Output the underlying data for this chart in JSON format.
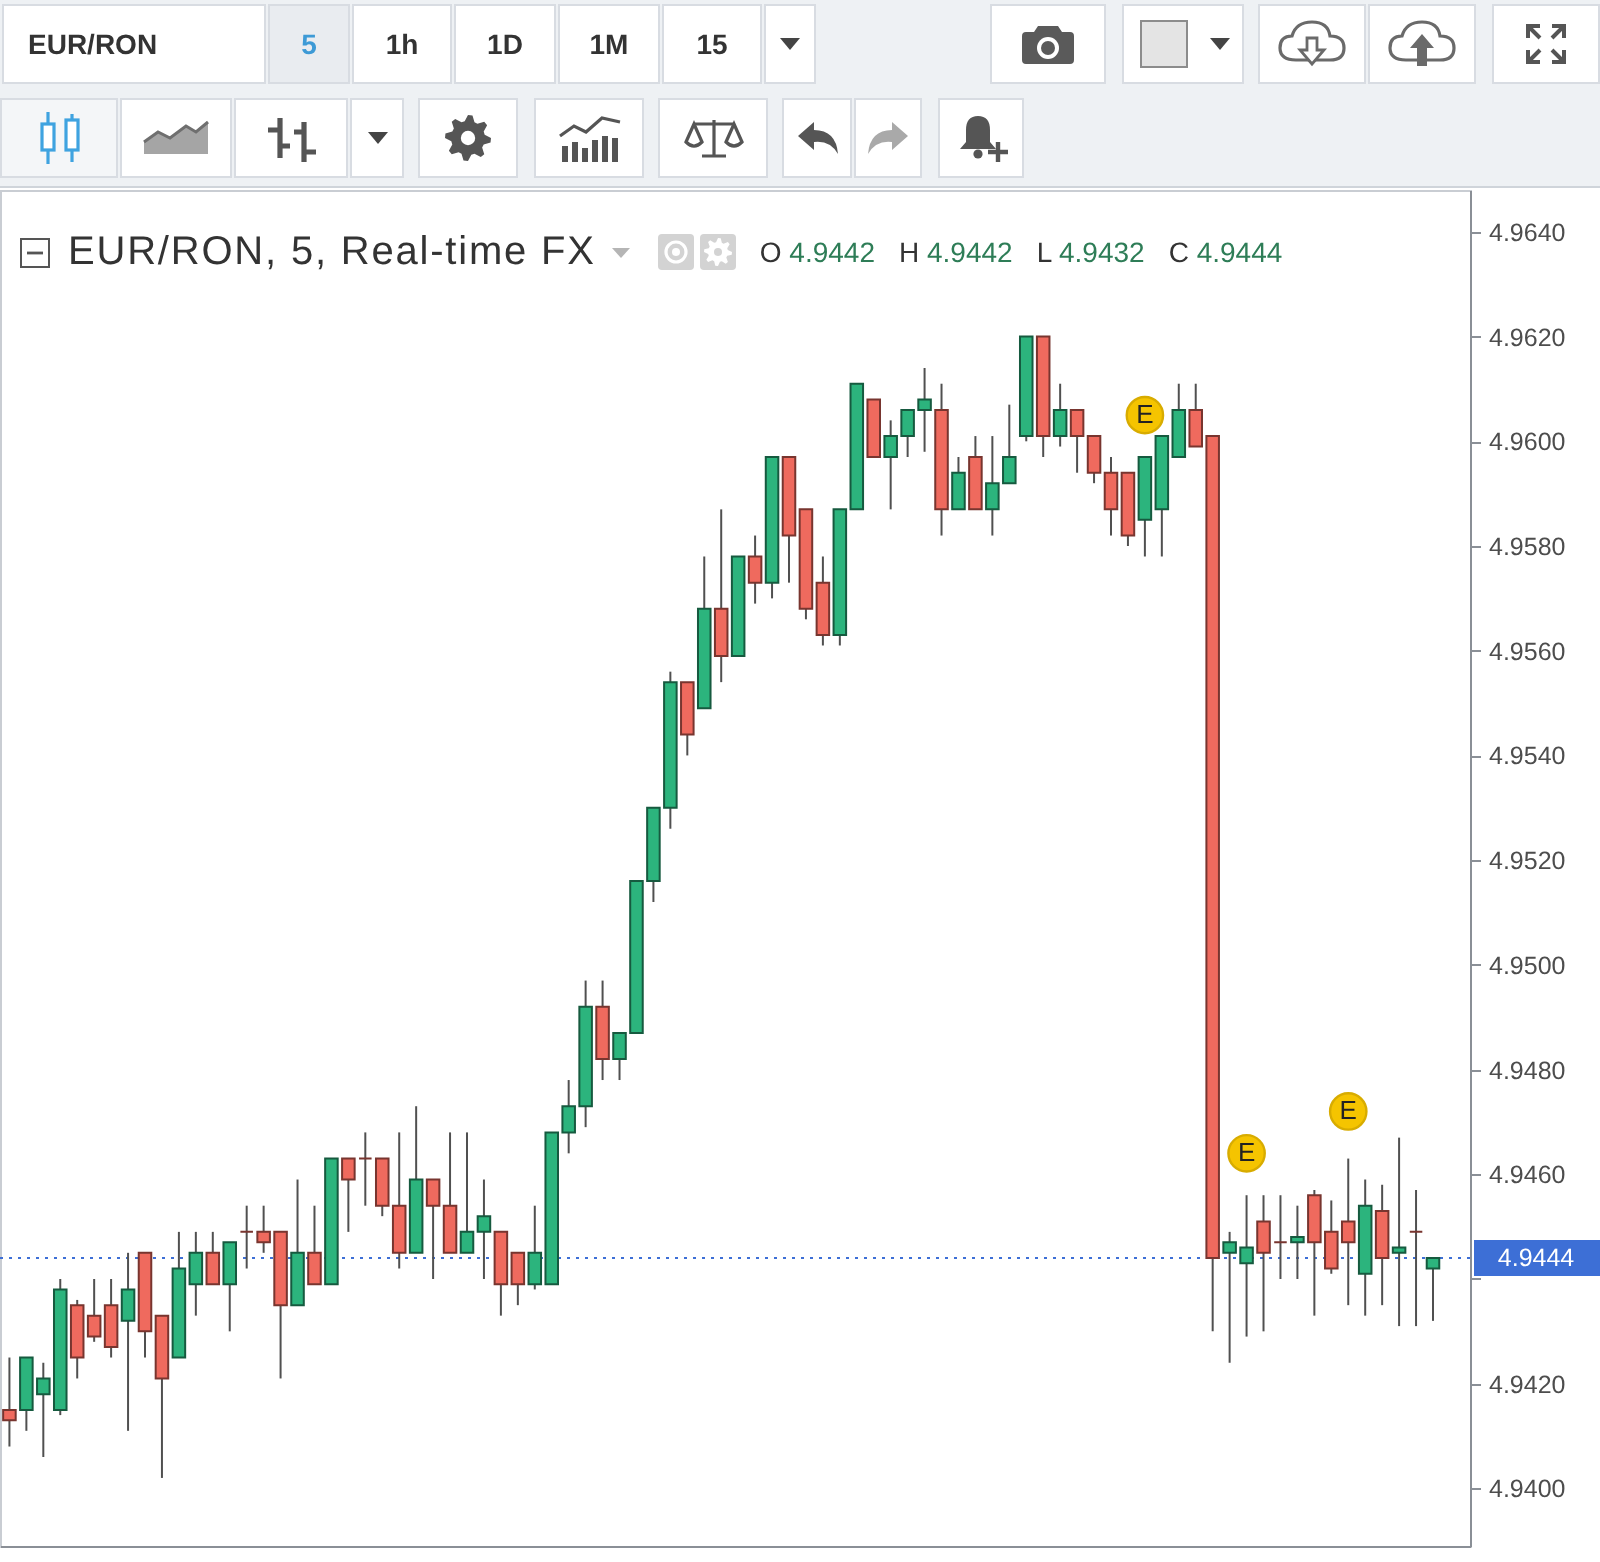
{
  "chart_data": {
    "type": "candlestick",
    "title": "EUR/RON, 5, Real-time FX",
    "annotations": [
      "EUR/RON",
      "5",
      "1h",
      "1D",
      "1M",
      "15",
      "O 4.9442",
      "H 4.9442",
      "L 4.9432",
      "C 4.9444"
    ],
    "categories": [
      null,
      null,
      null,
      null,
      null,
      null,
      null,
      null,
      null,
      null,
      null,
      null,
      null,
      null,
      null,
      null,
      null,
      null,
      null,
      null,
      null,
      null,
      null,
      null,
      null,
      null,
      null,
      null,
      null,
      null,
      null,
      null,
      null,
      null,
      null,
      null,
      null,
      null,
      null,
      null,
      null,
      null,
      null,
      null,
      null,
      null,
      null,
      null,
      null,
      null,
      null,
      null,
      null,
      null,
      null,
      null,
      null,
      null,
      null,
      null,
      null,
      null,
      null,
      null,
      null,
      null,
      null,
      null,
      null,
      null,
      null,
      null,
      null,
      null,
      null,
      null,
      null,
      null,
      null,
      null,
      null,
      null,
      null,
      null,
      null
    ],
    "ohlc": [
      [
        4.9415,
        4.9425,
        4.9408,
        4.9413
      ],
      [
        4.9415,
        4.9425,
        4.9411,
        4.9425
      ],
      [
        4.9418,
        4.9424,
        4.9406,
        4.9421
      ],
      [
        4.9415,
        4.944,
        4.9414,
        4.9438
      ],
      [
        4.9435,
        4.9436,
        4.9421,
        4.9425
      ],
      [
        4.9433,
        4.944,
        4.9428,
        4.9429
      ],
      [
        4.9435,
        4.944,
        4.9425,
        4.9427
      ],
      [
        4.9432,
        4.9445,
        4.9411,
        4.9438
      ],
      [
        4.9445,
        4.9445,
        4.9425,
        4.943
      ],
      [
        4.9433,
        4.9433,
        4.9402,
        4.9421
      ],
      [
        4.9425,
        4.9449,
        4.9425,
        4.9442
      ],
      [
        4.9439,
        4.9449,
        4.9433,
        4.9445
      ],
      [
        4.9445,
        4.9449,
        4.9439,
        4.9439
      ],
      [
        4.9439,
        4.9447,
        4.943,
        4.9447
      ],
      [
        4.9449,
        4.9454,
        4.9442,
        4.9449
      ],
      [
        4.9449,
        4.9454,
        4.9445,
        4.9447
      ],
      [
        4.9449,
        4.9449,
        4.9421,
        4.9435
      ],
      [
        4.9435,
        4.9459,
        4.9435,
        4.9445
      ],
      [
        4.9445,
        4.9454,
        4.9439,
        4.9439
      ],
      [
        4.9439,
        4.9463,
        4.9439,
        4.9463
      ],
      [
        4.9463,
        4.9463,
        4.9449,
        4.9459
      ],
      [
        4.9463,
        4.9468,
        4.9454,
        4.9463
      ],
      [
        4.9463,
        4.9463,
        4.9452,
        4.9454
      ],
      [
        4.9454,
        4.9468,
        4.9442,
        4.9445
      ],
      [
        4.9445,
        4.9473,
        4.9445,
        4.9459
      ],
      [
        4.9459,
        4.9459,
        4.944,
        4.9454
      ],
      [
        4.9454,
        4.9468,
        4.9445,
        4.9445
      ],
      [
        4.9445,
        4.9468,
        4.9445,
        4.9449
      ],
      [
        4.9449,
        4.9459,
        4.944,
        4.9452
      ],
      [
        4.9449,
        4.9449,
        4.9433,
        4.9439
      ],
      [
        4.9445,
        4.9445,
        4.9435,
        4.9439
      ],
      [
        4.9439,
        4.9454,
        4.9438,
        4.9445
      ],
      [
        4.9439,
        4.9468,
        4.9439,
        4.9468
      ],
      [
        4.9468,
        4.9478,
        4.9464,
        4.9473
      ],
      [
        4.9473,
        4.9497,
        4.9469,
        4.9492
      ],
      [
        4.9492,
        4.9497,
        4.9478,
        4.9482
      ],
      [
        4.9482,
        4.9487,
        4.9478,
        4.9487
      ],
      [
        4.9487,
        4.9516,
        4.9487,
        4.9516
      ],
      [
        4.9516,
        4.953,
        4.9512,
        4.953
      ],
      [
        4.953,
        4.9556,
        4.9526,
        4.9554
      ],
      [
        4.9554,
        4.9554,
        4.954,
        4.9544
      ],
      [
        4.9549,
        4.9578,
        4.9549,
        4.9568
      ],
      [
        4.9568,
        4.9587,
        4.9554,
        4.9559
      ],
      [
        4.9559,
        4.9578,
        4.9559,
        4.9578
      ],
      [
        4.9578,
        4.9582,
        4.9569,
        4.9573
      ],
      [
        4.9573,
        4.9597,
        4.957,
        4.9597
      ],
      [
        4.9597,
        4.9597,
        4.9573,
        4.9582
      ],
      [
        4.9587,
        4.9587,
        4.9566,
        4.9568
      ],
      [
        4.9573,
        4.9578,
        4.9561,
        4.9563
      ],
      [
        4.9563,
        4.9587,
        4.9561,
        4.9587
      ],
      [
        4.9587,
        4.9611,
        4.9587,
        4.9611
      ],
      [
        4.9608,
        4.9608,
        4.9597,
        4.9597
      ],
      [
        4.9597,
        4.9604,
        4.9587,
        4.9601
      ],
      [
        4.9601,
        4.9606,
        4.9597,
        4.9606
      ],
      [
        4.9606,
        4.9614,
        4.9598,
        4.9608
      ],
      [
        4.9606,
        4.9611,
        4.9582,
        4.9587
      ],
      [
        4.9587,
        4.9597,
        4.9587,
        4.9594
      ],
      [
        4.9597,
        4.9601,
        4.9587,
        4.9587
      ],
      [
        4.9587,
        4.9601,
        4.9582,
        4.9592
      ],
      [
        4.9592,
        4.9607,
        4.9592,
        4.9597
      ],
      [
        4.9601,
        4.962,
        4.96,
        4.962
      ],
      [
        4.962,
        4.962,
        4.9597,
        4.9601
      ],
      [
        4.9601,
        4.9611,
        4.9599,
        4.9606
      ],
      [
        4.9606,
        4.9606,
        4.9594,
        4.9601
      ],
      [
        4.9601,
        4.9601,
        4.9592,
        4.9594
      ],
      [
        4.9594,
        4.9597,
        4.9582,
        4.9587
      ],
      [
        4.9594,
        4.9594,
        4.958,
        4.9582
      ],
      [
        4.9585,
        4.9597,
        4.9578,
        4.9597
      ],
      [
        4.9587,
        4.9601,
        4.9578,
        4.9601
      ],
      [
        4.9597,
        4.9611,
        4.9597,
        4.9606
      ],
      [
        4.9606,
        4.9611,
        4.9599,
        4.9599
      ],
      [
        4.9601,
        4.9601,
        4.943,
        4.9444
      ],
      [
        4.9445,
        4.9449,
        4.9424,
        4.9447
      ],
      [
        4.9443,
        4.9456,
        4.9429,
        4.9446
      ],
      [
        4.9451,
        4.9456,
        4.943,
        4.9445
      ],
      [
        4.9447,
        4.9456,
        4.944,
        4.9447
      ],
      [
        4.9447,
        4.9454,
        4.944,
        4.9448
      ],
      [
        4.9456,
        4.9457,
        4.9433,
        4.9447
      ],
      [
        4.9449,
        4.9455,
        4.9441,
        4.9442
      ],
      [
        4.9451,
        4.9463,
        4.9435,
        4.9447
      ],
      [
        4.9441,
        4.9459,
        4.9433,
        4.9454
      ],
      [
        4.9453,
        4.9458,
        4.9435,
        4.9444
      ],
      [
        4.9445,
        4.9467,
        4.9431,
        4.9446
      ],
      [
        4.9449,
        4.9457,
        4.9431,
        4.9449
      ],
      [
        4.9442,
        4.9444,
        4.9432,
        4.9444
      ]
    ],
    "colors": [
      "#ef6a5e",
      "#2cb47d",
      "#2cb47d",
      "#2cb47d",
      "#ef6a5e",
      "#ef6a5e",
      "#ef6a5e",
      "#2cb47d",
      "#ef6a5e",
      "#ef6a5e",
      "#2cb47d",
      "#2cb47d",
      "#ef6a5e",
      "#2cb47d",
      "#78352f",
      "#ef6a5e",
      "#ef6a5e",
      "#2cb47d",
      "#ef6a5e",
      "#2cb47d",
      "#ef6a5e",
      "#78352f",
      "#ef6a5e",
      "#ef6a5e",
      "#2cb47d",
      "#ef6a5e",
      "#ef6a5e",
      "#2cb47d",
      "#2cb47d",
      "#ef6a5e",
      "#ef6a5e",
      "#2cb47d",
      "#2cb47d",
      "#2cb47d",
      "#2cb47d",
      "#ef6a5e",
      "#2cb47d",
      "#2cb47d",
      "#2cb47d",
      "#2cb47d",
      "#ef6a5e",
      "#2cb47d",
      "#ef6a5e",
      "#2cb47d",
      "#ef6a5e",
      "#2cb47d",
      "#ef6a5e",
      "#ef6a5e",
      "#ef6a5e",
      "#2cb47d",
      "#2cb47d",
      "#ef6a5e",
      "#2cb47d",
      "#2cb47d",
      "#2cb47d",
      "#ef6a5e",
      "#2cb47d",
      "#ef6a5e",
      "#2cb47d",
      "#2cb47d",
      "#2cb47d",
      "#ef6a5e",
      "#2cb47d",
      "#ef6a5e",
      "#ef6a5e",
      "#ef6a5e",
      "#ef6a5e",
      "#2cb47d",
      "#2cb47d",
      "#2cb47d",
      "#ef6a5e",
      "#ef6a5e",
      "#2cb47d",
      "#2cb47d",
      "#ef6a5e",
      "#78352f",
      "#2cb47d",
      "#ef6a5e",
      "#ef6a5e",
      "#ef6a5e",
      "#2cb47d",
      "#ef6a5e",
      "#2cb47d",
      "#78352f",
      "#2cb47d"
    ],
    "series": [
      {
        "type": "scatter",
        "color": "#f5c400",
        "marker": "circle",
        "values": [
          null,
          null,
          null,
          null,
          null,
          null,
          null,
          null,
          null,
          null,
          null,
          null,
          null,
          null,
          null,
          null,
          null,
          null,
          null,
          null,
          null,
          null,
          null,
          null,
          null,
          null,
          null,
          null,
          null,
          null,
          null,
          null,
          null,
          null,
          null,
          null,
          null,
          null,
          null,
          null,
          null,
          null,
          null,
          null,
          null,
          null,
          null,
          null,
          null,
          null,
          null,
          null,
          null,
          null,
          null,
          null,
          null,
          null,
          null,
          null,
          null,
          null,
          null,
          null,
          null,
          null,
          null,
          4.9605,
          null,
          null,
          null,
          null,
          null,
          4.9464,
          null,
          null,
          null,
          null,
          null,
          4.9472,
          null,
          null,
          null,
          null,
          null
        ],
        "value_labels": [
          null,
          null,
          null,
          null,
          null,
          null,
          null,
          null,
          null,
          null,
          null,
          null,
          null,
          null,
          null,
          null,
          null,
          null,
          null,
          null,
          null,
          null,
          null,
          null,
          null,
          null,
          null,
          null,
          null,
          null,
          null,
          null,
          null,
          null,
          null,
          null,
          null,
          null,
          null,
          null,
          null,
          null,
          null,
          null,
          null,
          null,
          null,
          null,
          null,
          null,
          null,
          null,
          null,
          null,
          null,
          null,
          null,
          null,
          null,
          null,
          null,
          null,
          null,
          null,
          null,
          null,
          null,
          "E",
          null,
          null,
          null,
          null,
          null,
          "E",
          null,
          null,
          null,
          null,
          null,
          "E",
          null,
          null,
          null,
          null,
          null
        ]
      }
    ],
    "ylim": [
      4.9389,
      4.9648
    ],
    "yticks": [
      {
        "value": 4.94,
        "label": "4.9400"
      },
      {
        "value": 4.942,
        "label": "4.9420"
      },
      {
        "value": 4.944,
        "label": null
      },
      {
        "value": 4.946,
        "label": "4.9460"
      },
      {
        "value": 4.948,
        "label": "4.9480"
      },
      {
        "value": 4.95,
        "label": "4.9500"
      },
      {
        "value": 4.952,
        "label": "4.9520"
      },
      {
        "value": 4.954,
        "label": "4.9540"
      },
      {
        "value": 4.956,
        "label": "4.9560"
      },
      {
        "value": 4.958,
        "label": "4.9580"
      },
      {
        "value": 4.96,
        "label": "4.9600"
      },
      {
        "value": 4.962,
        "label": "4.9620"
      },
      {
        "value": 4.964,
        "label": "4.9640"
      }
    ],
    "ref_lines": [
      {
        "axis": "y",
        "value": 4.9444,
        "label": "4.9444",
        "color": "#3d6fd6",
        "line_style": "dotted"
      }
    ],
    "tick_labels": "y",
    "grid": false
  }
}
